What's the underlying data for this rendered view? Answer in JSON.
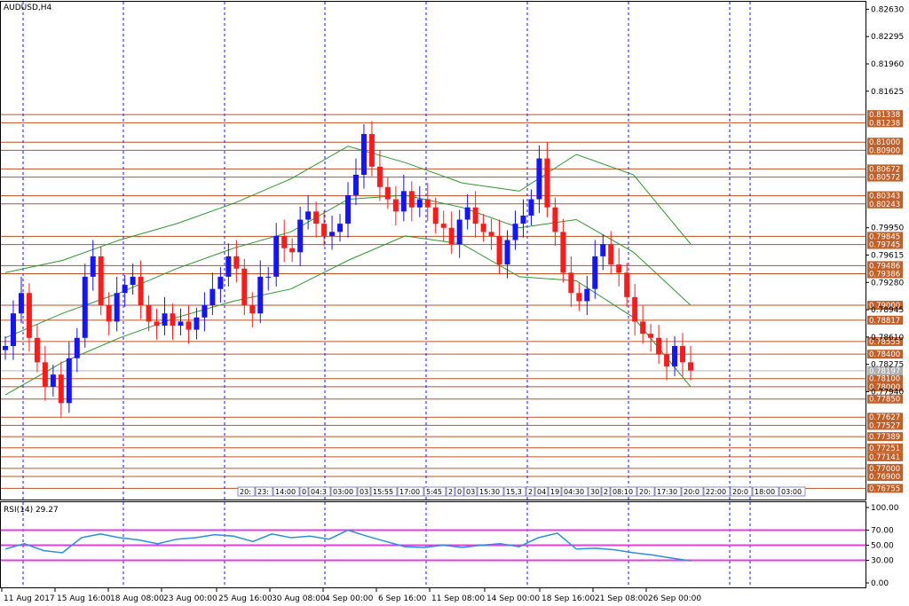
{
  "window": {
    "title": "AUDUSD,H4"
  },
  "indicator": {
    "label": "RSI(14) 29.27"
  },
  "colors": {
    "grid": "#1a1ae6",
    "hline": "#c05020",
    "bull": "#1414ff",
    "bear": "#ff1a1a",
    "band": "#2a9a2a",
    "rsi": "#2a8fe0",
    "rsi_levels": "#e040e0",
    "price_label_bg": "#c0602a",
    "current_bg": "#b0b0b0"
  },
  "price_axis": [
    "0.82630",
    "0.82295",
    "0.81960",
    "0.81625",
    "0.79950",
    "0.79615",
    "0.79280",
    "0.78945",
    "0.78610",
    "0.78275",
    "0.77940"
  ],
  "price_levels": [
    {
      "label": "0.81338"
    },
    {
      "label": "0.81238"
    },
    {
      "label": "0.81000"
    },
    {
      "label": "0.80900"
    },
    {
      "label": "0.80672"
    },
    {
      "label": "0.80572"
    },
    {
      "label": "0.80343"
    },
    {
      "label": "0.80243"
    },
    {
      "label": "0.79845"
    },
    {
      "label": "0.79745"
    },
    {
      "label": "0.79486"
    },
    {
      "label": "0.79386"
    },
    {
      "label": "0.79000"
    },
    {
      "label": "0.78817"
    },
    {
      "label": "0.78555"
    },
    {
      "label": "0.78400"
    },
    {
      "label": "0.78100"
    },
    {
      "label": "0.78000"
    },
    {
      "label": "0.77850"
    },
    {
      "label": "0.77627"
    },
    {
      "label": "0.77527"
    },
    {
      "label": "0.77389"
    },
    {
      "label": "0.77251"
    },
    {
      "label": "0.77141"
    },
    {
      "label": "0.77000"
    },
    {
      "label": "0.76900"
    },
    {
      "label": "0.76755"
    }
  ],
  "current_price": {
    "label": "0.78197"
  },
  "rsi_axis": [
    "100.00",
    "70.00",
    "50.00",
    "30.00",
    "0.00"
  ],
  "time_axis": [
    "11 Aug 2017",
    "15 Aug 16:00",
    "18 Aug 08:00",
    "23 Aug 00:00",
    "25 Aug 16:00",
    "30 Aug 08:00",
    "4 Sep 00:00",
    "6 Sep 16:00",
    "11 Sep 08:00",
    "14 Sep 00:00",
    "18 Sep 16:00",
    "21 Sep 08:00",
    "26 Sep 00:00"
  ],
  "time_labels": [
    "20:",
    "23:",
    "14:00",
    "0",
    "04:3",
    "03:00",
    "03",
    "15:55",
    "17:00",
    "5:45",
    "2",
    "0",
    "03",
    "15:30",
    "15,3",
    "2",
    "04",
    "19",
    "04:30",
    "30",
    "2",
    "08:10",
    "20:",
    "17:30",
    "20:0",
    "22:00",
    "20:0",
    "18:00",
    "03:00"
  ],
  "chart_data": {
    "type": "candlestick",
    "symbol": "AUDUSD",
    "timeframe": "H4",
    "y_range": [
      0.7665,
      0.827
    ],
    "close": [
      0.785,
      0.789,
      0.7915,
      0.786,
      0.783,
      0.78,
      0.7815,
      0.778,
      0.7835,
      0.786,
      0.7935,
      0.796,
      0.79,
      0.788,
      0.7915,
      0.7925,
      0.7935,
      0.79,
      0.788,
      0.7875,
      0.789,
      0.7875,
      0.788,
      0.787,
      0.7885,
      0.79,
      0.792,
      0.7935,
      0.796,
      0.7945,
      0.79,
      0.789,
      0.7935,
      0.7935,
      0.7985,
      0.797,
      0.7965,
      0.8005,
      0.8015,
      0.8,
      0.7985,
      0.799,
      0.8,
      0.8035,
      0.806,
      0.811,
      0.807,
      0.8045,
      0.803,
      0.8015,
      0.804,
      0.802,
      0.803,
      0.802,
      0.8,
      0.7995,
      0.7975,
      0.8005,
      0.802,
      0.8,
      0.799,
      0.7985,
      0.795,
      0.798,
      0.8,
      0.801,
      0.803,
      0.808,
      0.802,
      0.799,
      0.794,
      0.7915,
      0.7905,
      0.792,
      0.796,
      0.7975,
      0.795,
      0.794,
      0.791,
      0.788,
      0.7865,
      0.786,
      0.784,
      0.7825,
      0.785,
      0.783,
      0.782
    ],
    "bands": [
      [
        0.794,
        0.786,
        0.779
      ],
      [
        0.7955,
        0.789,
        0.783
      ],
      [
        0.798,
        0.7915,
        0.786
      ],
      [
        0.8,
        0.7945,
        0.7885
      ],
      [
        0.8025,
        0.797,
        0.7905
      ],
      [
        0.8055,
        0.799,
        0.792
      ],
      [
        0.8095,
        0.803,
        0.7955
      ],
      [
        0.8075,
        0.8035,
        0.7985
      ],
      [
        0.805,
        0.802,
        0.7975
      ],
      [
        0.804,
        0.7995,
        0.7935
      ],
      [
        0.8085,
        0.8005,
        0.793
      ],
      [
        0.806,
        0.7965,
        0.7885
      ],
      [
        0.7975,
        0.79,
        0.78
      ]
    ],
    "rsi": [
      45,
      52,
      43,
      40,
      60,
      65,
      60,
      57,
      52,
      58,
      60,
      64,
      62,
      55,
      65,
      60,
      62,
      58,
      70,
      62,
      55,
      48,
      47,
      50,
      47,
      50,
      52,
      48,
      60,
      66,
      45,
      46,
      44,
      40,
      37,
      33,
      29.27
    ],
    "rsi_levels": [
      70,
      50,
      30
    ]
  }
}
